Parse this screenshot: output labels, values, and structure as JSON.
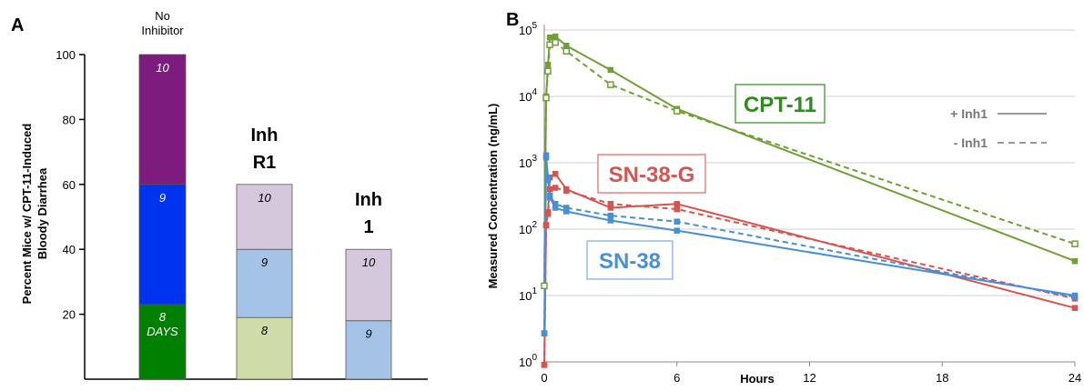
{
  "chart_data": [
    {
      "panel": "A",
      "type": "bar",
      "ylabel": [
        "Percent Mice w/ CPT-11-Induced",
        "Bloody Diarrhea"
      ],
      "ylim": [
        0,
        100
      ],
      "yticks": [
        20,
        40,
        60,
        80,
        100
      ],
      "groups": [
        {
          "label_lines": [
            "No",
            "Inhibitor"
          ],
          "label_style": "small",
          "segments": [
            {
              "from": 0,
              "to": 23,
              "label": "8",
              "sub_label": "DAYS",
              "color": "#008000",
              "text_color": "#ffffff"
            },
            {
              "from": 23,
              "to": 60,
              "label": "9",
              "color": "#0033ee",
              "text_color": "#ffffff"
            },
            {
              "from": 60,
              "to": 100,
              "label": "10",
              "color": "#7e1b7e",
              "text_color": "#ffffff"
            }
          ]
        },
        {
          "label_lines": [
            "Inh",
            "R1"
          ],
          "label_style": "large",
          "segments": [
            {
              "from": 0,
              "to": 19,
              "label": "8",
              "color": "#cfdcaa",
              "text_color": "#000000"
            },
            {
              "from": 19,
              "to": 40,
              "label": "9",
              "color": "#a5c3e6",
              "text_color": "#000000"
            },
            {
              "from": 40,
              "to": 60,
              "label": "10",
              "color": "#d5c8dc",
              "text_color": "#000000"
            }
          ]
        },
        {
          "label_lines": [
            "Inh",
            "1"
          ],
          "label_style": "large",
          "segments": [
            {
              "from": 0,
              "to": 18,
              "label": "9",
              "color": "#a5c3e6",
              "text_color": "#000000"
            },
            {
              "from": 18,
              "to": 40,
              "label": "10",
              "color": "#d5c8dc",
              "text_color": "#000000"
            }
          ]
        }
      ]
    },
    {
      "panel": "B",
      "type": "line",
      "xlabel": "Hours",
      "ylabel": "Measured Concentration (ng/mL)",
      "yscale": "log",
      "xlim": [
        0,
        24
      ],
      "ylim": [
        1,
        100000
      ],
      "xticks": [
        0,
        6,
        12,
        18,
        24
      ],
      "yticks": [
        {
          "value": 1,
          "mantissa": "10",
          "exp": "0"
        },
        {
          "value": 10,
          "mantissa": "10",
          "exp": "1"
        },
        {
          "value": 100,
          "mantissa": "10",
          "exp": "2"
        },
        {
          "value": 1000,
          "mantissa": "10",
          "exp": "3"
        },
        {
          "value": 10000,
          "mantissa": "10",
          "exp": "4"
        },
        {
          "value": 100000,
          "mantissa": "10",
          "exp": "5"
        }
      ],
      "grid": true,
      "legend": {
        "position": "top-right",
        "items": [
          {
            "label": "+ Inh1",
            "dash": false
          },
          {
            "label": "- Inh1",
            "dash": true
          }
        ]
      },
      "series": [
        {
          "name": "CPT-11",
          "color": "#70a033",
          "dash": false,
          "marker": "square",
          "x": [
            0,
            0.083,
            0.167,
            0.25,
            0.5,
            1,
            3,
            6,
            24
          ],
          "y": [
            14,
            10000,
            30000,
            77000,
            80000,
            58000,
            25000,
            6500,
            33
          ]
        },
        {
          "name": "CPT-11",
          "color": "#70a033",
          "dash": true,
          "marker": "square-open",
          "x": [
            0,
            0.083,
            0.167,
            0.25,
            0.5,
            1,
            3,
            6,
            24
          ],
          "y": [
            14,
            9500,
            24000,
            60000,
            65000,
            48000,
            15000,
            6000,
            60
          ]
        },
        {
          "name": "SN-38-G",
          "color": "#d9534f",
          "dash": false,
          "marker": "square",
          "x": [
            0,
            0.083,
            0.167,
            0.25,
            0.5,
            1,
            3,
            6,
            24
          ],
          "y": [
            0.9,
            115,
            180,
            600,
            680,
            400,
            210,
            240,
            6.5
          ]
        },
        {
          "name": "SN-38-G",
          "color": "#d9534f",
          "dash": true,
          "marker": "square",
          "x": [
            0,
            0.083,
            0.167,
            0.25,
            0.5,
            1,
            3,
            6,
            24
          ],
          "y": [
            0.9,
            115,
            170,
            400,
            420,
            380,
            240,
            200,
            9
          ]
        },
        {
          "name": "SN-38",
          "color": "#4a8fd4",
          "dash": false,
          "marker": "square",
          "x": [
            0,
            0.083,
            0.167,
            0.25,
            0.5,
            1,
            3,
            6,
            24
          ],
          "y": [
            2.7,
            1300,
            600,
            300,
            210,
            185,
            135,
            95,
            10
          ]
        },
        {
          "name": "SN-38",
          "color": "#4a8fd4",
          "dash": true,
          "marker": "square",
          "x": [
            0,
            0.083,
            0.167,
            0.25,
            0.5,
            1,
            3,
            6,
            24
          ],
          "y": [
            2.7,
            1200,
            550,
            320,
            240,
            210,
            160,
            130,
            9.5
          ]
        }
      ],
      "series_labels": [
        {
          "text": "CPT-11",
          "color": "#2e8b1f",
          "border": "#2e8b1f"
        },
        {
          "text": "SN-38-G",
          "color": "#d9534f",
          "border": "#e06666"
        },
        {
          "text": "SN-38",
          "color": "#4a8fd4",
          "border": "#7aaee0"
        }
      ]
    }
  ]
}
